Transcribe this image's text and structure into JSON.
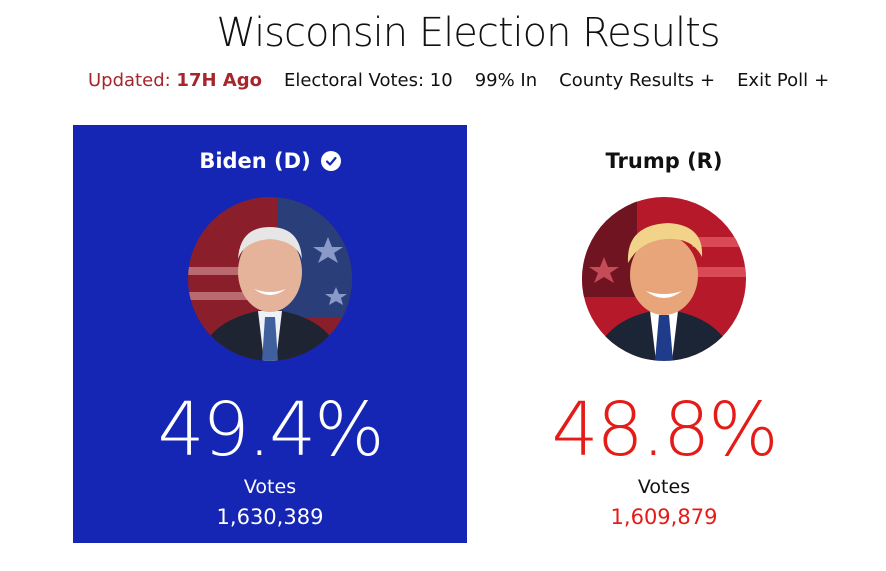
{
  "header": {
    "title": "Wisconsin Election Results",
    "updated_label": "Updated:",
    "updated_value": "17H Ago",
    "electoral_votes": "Electoral Votes: 10",
    "reporting": "99% In",
    "county_results": "County Results",
    "exit_poll": "Exit Poll",
    "expand_symbol": "+"
  },
  "candidates": {
    "biden": {
      "name": "Biden (D)",
      "winner": true,
      "percent": "49.4%",
      "votes_label": "Votes",
      "votes": "1,630,389",
      "color": "#1526b5"
    },
    "trump": {
      "name": "Trump (R)",
      "winner": false,
      "percent": "48.8%",
      "votes_label": "Votes",
      "votes": "1,609,879",
      "color": "#e41b17"
    }
  }
}
